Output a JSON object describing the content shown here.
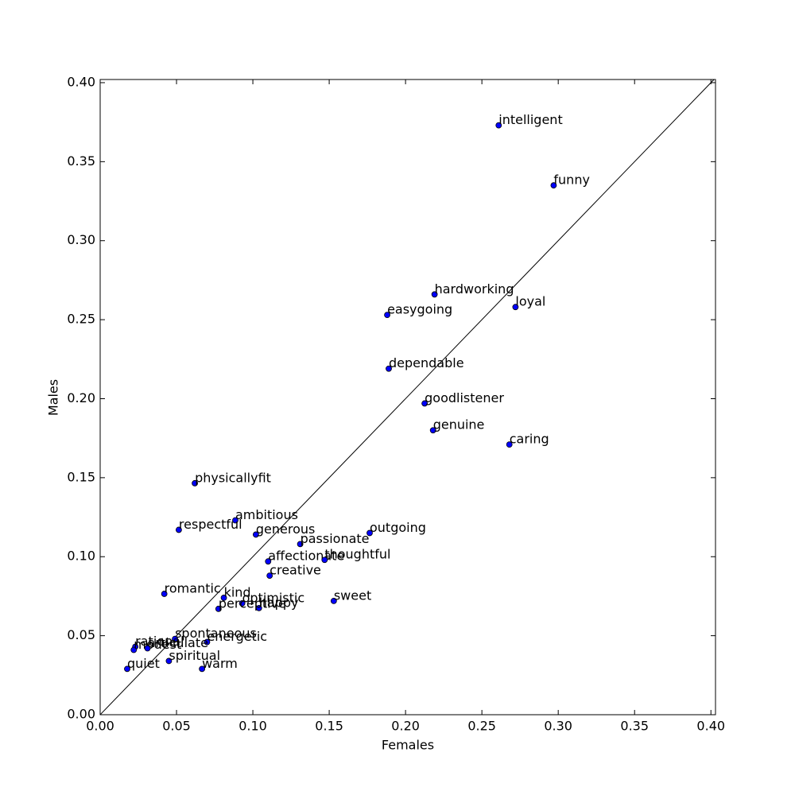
{
  "chart_data": {
    "type": "scatter",
    "x_label": "Females",
    "y_label": "Males",
    "color": "#0000ff",
    "labels": [
      "intelligent",
      "funny",
      "hardworking",
      "loyal",
      "easygoing",
      "dependable",
      "goodlistener",
      "genuine",
      "caring",
      "physicallyfit",
      "ambitious",
      "respectful",
      "generous",
      "outgoing",
      "passionate",
      "affectionate",
      "thoughtful",
      "creative",
      "romantic",
      "kind",
      "optimistic",
      "happy",
      "perceptive",
      "sweet",
      "spontaneous",
      "energetic",
      "rational",
      "modest",
      "articulate",
      "spiritual",
      "quiet",
      "warm"
    ],
    "x": [
      0.261,
      0.297,
      0.219,
      0.272,
      0.188,
      0.189,
      0.2125,
      0.218,
      0.268,
      0.062,
      0.0885,
      0.0515,
      0.102,
      0.1765,
      0.131,
      0.11,
      0.147,
      0.111,
      0.042,
      0.081,
      0.093,
      0.104,
      0.0775,
      0.153,
      0.049,
      0.07,
      0.023,
      0.022,
      0.031,
      0.045,
      0.0177,
      0.0667
    ],
    "y": [
      0.373,
      0.335,
      0.266,
      0.258,
      0.253,
      0.219,
      0.197,
      0.18,
      0.171,
      0.1465,
      0.123,
      0.117,
      0.114,
      0.115,
      0.108,
      0.097,
      0.098,
      0.088,
      0.0765,
      0.074,
      0.0705,
      0.0675,
      0.067,
      0.072,
      0.048,
      0.046,
      0.043,
      0.041,
      0.042,
      0.034,
      0.029,
      0.029
    ],
    "xlim": [
      0,
      0.403
    ],
    "ylim": [
      0,
      0.402
    ],
    "xticks": [
      {
        "value": 0,
        "label": "0.00"
      },
      {
        "value": 0.05,
        "label": "0.05"
      },
      {
        "value": 0.1,
        "label": "0.10"
      },
      {
        "value": 0.15,
        "label": "0.15"
      },
      {
        "value": 0.2,
        "label": "0.20"
      },
      {
        "value": 0.25,
        "label": "0.25"
      },
      {
        "value": 0.3,
        "label": "0.30"
      },
      {
        "value": 0.35,
        "label": "0.35"
      },
      {
        "value": 0.4,
        "label": "0.40"
      }
    ],
    "yticks": [
      {
        "value": 0,
        "label": "0.00"
      },
      {
        "value": 0.05,
        "label": "0.05"
      },
      {
        "value": 0.1,
        "label": "0.10"
      },
      {
        "value": 0.15,
        "label": "0.15"
      },
      {
        "value": 0.2,
        "label": "0.20"
      },
      {
        "value": 0.25,
        "label": "0.25"
      },
      {
        "value": 0.3,
        "label": "0.30"
      },
      {
        "value": 0.35,
        "label": "0.35"
      },
      {
        "value": 0.4,
        "label": "0.40"
      }
    ]
  }
}
